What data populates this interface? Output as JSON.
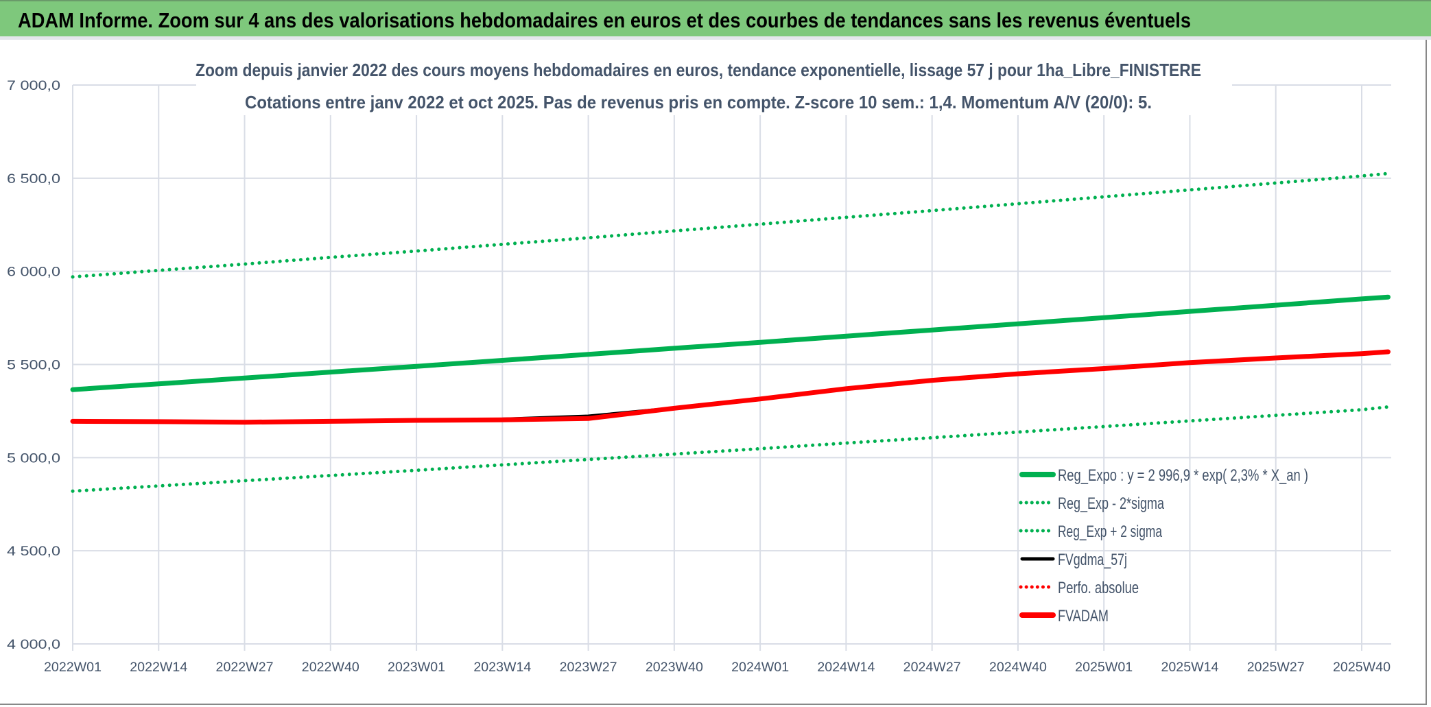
{
  "header": {
    "title": "ADAM Informe. Zoom sur 4 ans des valorisations hebdomadaires en euros et des courbes de tendances sans les revenus éventuels"
  },
  "chart_data": {
    "type": "line",
    "title": "Zoom depuis janvier 2022 des cours moyens hebdomadaires en euros, tendance exponentielle, lissage 57 j pour 1ha_Libre_FINISTERE",
    "subtitle": "Cotations entre janv 2022 et oct 2025. Pas de revenus pris en compte. Z-score 10 sem.: 1,4. Momentum A/V (20/0): 5.",
    "xlabel": "",
    "ylabel": "",
    "ylim": [
      4000,
      7000
    ],
    "y_ticks": [
      "4 000,0",
      "4 500,0",
      "5 000,0",
      "5 500,0",
      "6 000,0",
      "6 500,0",
      "7 000,0"
    ],
    "y_tick_values": [
      4000,
      4500,
      5000,
      5500,
      6000,
      6500,
      7000
    ],
    "x_ticks": [
      "2022W01",
      "2022W14",
      "2022W27",
      "2022W40",
      "2023W01",
      "2023W14",
      "2023W27",
      "2023W40",
      "2024W01",
      "2024W14",
      "2024W27",
      "2024W40",
      "2025W01",
      "2025W14",
      "2025W27",
      "2025W40"
    ],
    "x_week_index": [
      0,
      13,
      26,
      39,
      52,
      65,
      78,
      91,
      104,
      117,
      130,
      143,
      156,
      169,
      182,
      195,
      199
    ],
    "x_range_weeks": [
      0,
      199.6
    ],
    "grid": true,
    "legend_position": "bottom-right",
    "series": [
      {
        "name": "Reg_Expo : y = 2 996,9 * exp( 2,3% *  X_an )",
        "color": "#00b050",
        "style": "solid",
        "values": [
          5365,
          5396,
          5427,
          5459,
          5490,
          5522,
          5554,
          5587,
          5619,
          5652,
          5685,
          5718,
          5751,
          5785,
          5818,
          5852,
          5862
        ]
      },
      {
        "name": "Reg_Exp - 2*sigma",
        "color": "#00b050",
        "style": "dotted",
        "values": [
          4820,
          4848,
          4876,
          4904,
          4932,
          4961,
          4990,
          5019,
          5048,
          5078,
          5107,
          5137,
          5167,
          5197,
          5227,
          5257,
          5272
        ]
      },
      {
        "name": "Reg_Exp + 2 sigma",
        "color": "#00b050",
        "style": "dotted",
        "values": [
          5970,
          6005,
          6039,
          6075,
          6109,
          6145,
          6180,
          6217,
          6253,
          6290,
          6326,
          6363,
          6400,
          6437,
          6474,
          6512,
          6525
        ]
      },
      {
        "name": "FVgdma_57j",
        "color": "#000000",
        "style": "solid",
        "values": [
          5195,
          5193,
          5190,
          5195,
          5200,
          5206,
          5222,
          5265,
          5315,
          5370,
          5415,
          5450,
          5478,
          5510,
          5535,
          5558,
          5568
        ]
      },
      {
        "name": "Perfo. absolue",
        "color": "#ff0000",
        "style": "dotted",
        "values": []
      },
      {
        "name": "FVADAM",
        "color": "#ff0000",
        "style": "solid",
        "values": [
          5195,
          5193,
          5190,
          5195,
          5200,
          5203,
          5210,
          5265,
          5315,
          5370,
          5415,
          5450,
          5478,
          5510,
          5535,
          5558,
          5568
        ]
      }
    ]
  }
}
